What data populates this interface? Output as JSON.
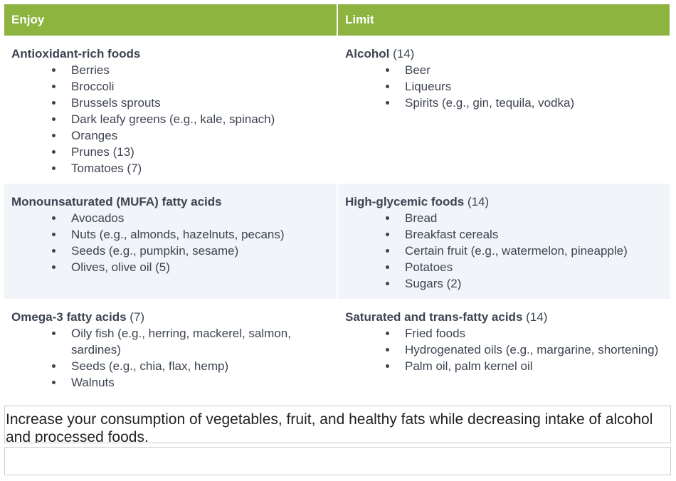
{
  "table": {
    "header": [
      "Enjoy",
      "Limit"
    ],
    "rows": [
      [
        {
          "title": "Antioxidant-rich foods",
          "items": [
            "Berries",
            "Broccoli",
            "Brussels sprouts",
            "Dark leafy greens (e.g., kale, spinach)",
            "Oranges",
            "Prunes (13)",
            "Tomatoes (7)"
          ]
        },
        {
          "title": "Alcohol",
          "ref": "(14)",
          "items": [
            "Beer",
            "Liqueurs",
            "Spirits (e.g., gin, tequila, vodka)"
          ]
        }
      ],
      [
        {
          "title": "Monounsaturated (MUFA) fatty acids",
          "items": [
            "Avocados",
            "Nuts (e.g., almonds, hazelnuts, pecans)",
            "Seeds (e.g., pumpkin, sesame)",
            "Olives, olive oil (5)"
          ]
        },
        {
          "title": "High-glycemic foods",
          "ref": "(14)",
          "items": [
            "Bread",
            "Breakfast cereals",
            "Certain fruit (e.g., watermelon, pineapple)",
            "Potatoes",
            "Sugars (2)"
          ]
        }
      ],
      [
        {
          "title": "Omega-3 fatty acids",
          "ref": "(7)",
          "items": [
            "Oily fish (e.g., herring, mackerel, salmon, sardines)",
            "Seeds (e.g., chia, flax, hemp)",
            "Walnuts"
          ]
        },
        {
          "title": "Saturated and trans-fatty acids",
          "ref": "(14)",
          "items": [
            "Fried foods",
            "Hydrogenated oils (e.g., margarine, shortening)",
            "Palm oil, palm kernel oil"
          ]
        }
      ]
    ]
  },
  "caption": "Increase your consumption of vegetables, fruit, and healthy fats while decreasing intake of alcohol and processed foods."
}
